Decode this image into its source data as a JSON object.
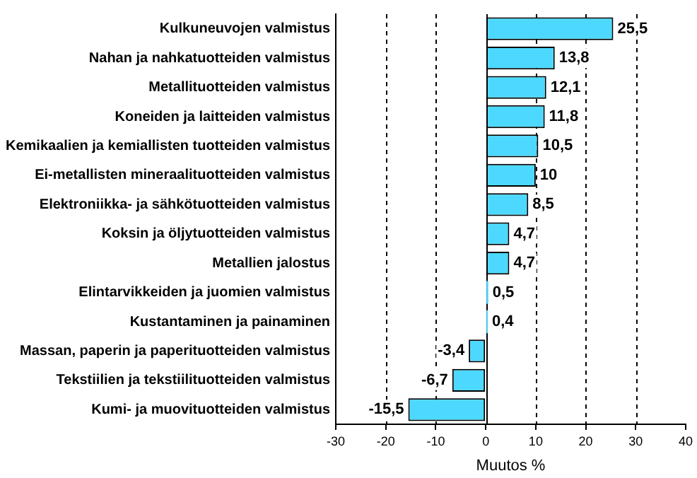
{
  "chart_data": {
    "type": "bar",
    "orientation": "horizontal",
    "xlabel": "Muutos %",
    "categories": [
      "Kulkuneuvojen valmistus",
      "Nahan ja nahkatuotteiden valmistus",
      "Metallituotteiden valmistus",
      "Koneiden ja laitteiden valmistus",
      "Kemikaalien ja kemiallisten tuotteiden valmistus",
      "Ei-metallisten mineraalituotteiden valmistus",
      "Elektroniikka- ja sähkötuotteiden valmistus",
      "Koksin ja öljytuotteiden valmistus",
      "Metallien jalostus",
      "Elintarvikkeiden ja juomien valmistus",
      "Kustantaminen ja painaminen",
      "Massan, paperin ja paperituotteiden valmistus",
      "Tekstiilien ja tekstiilituotteiden valmistus",
      "Kumi- ja muovituotteiden valmistus"
    ],
    "values": [
      25.5,
      13.8,
      12.1,
      11.8,
      10.5,
      10,
      8.5,
      4.7,
      4.7,
      0.5,
      0.4,
      -3.4,
      -6.7,
      -15.5
    ],
    "value_labels": [
      "25,5",
      "13,8",
      "12,1",
      "11,8",
      "10,5",
      "10",
      "8,5",
      "4,7",
      "4,7",
      "0,5",
      "0,4",
      "-3,4",
      "-6,7",
      "-15,5"
    ],
    "color": "#4dd9ff",
    "xlim": [
      -30,
      40
    ],
    "xticks": [
      -30,
      -20,
      -10,
      0,
      10,
      20,
      30,
      40
    ],
    "grid": "x",
    "line_style": "dashed",
    "legend": false
  }
}
